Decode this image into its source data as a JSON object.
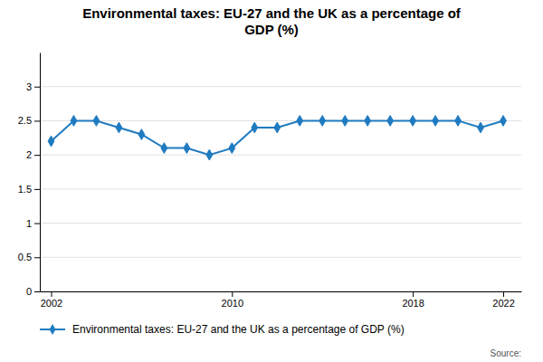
{
  "chart_data": {
    "type": "line",
    "title": "Environmental taxes: EU-27 and the UK as a percentage of\nGDP (%)",
    "annotations": [
      "Source:"
    ],
    "x": [
      2002,
      2003,
      2004,
      2005,
      2006,
      2007,
      2008,
      2009,
      2010,
      2011,
      2012,
      2013,
      2014,
      2015,
      2016,
      2017,
      2018,
      2019,
      2020,
      2021,
      2022
    ],
    "series": [
      {
        "name": "Environmental taxes: EU-27 and the UK as a percentage of GDP (%)",
        "color": "#1f7bc0",
        "marker": "diamond",
        "values": [
          2.2,
          2.5,
          2.5,
          2.4,
          2.3,
          2.1,
          2.1,
          2.0,
          2.1,
          2.4,
          2.4,
          2.5,
          2.5,
          2.5,
          2.5,
          2.5,
          2.5,
          2.5,
          2.5,
          2.4,
          2.5
        ]
      }
    ],
    "xlim": [
      2001.5,
      2022.8
    ],
    "xticks": [
      2002,
      2010,
      2018,
      2022
    ],
    "ylim": [
      0,
      3.5
    ],
    "yticks": [
      0,
      0.5,
      1,
      1.5,
      2,
      2.5,
      3
    ],
    "grid": true,
    "legend": "bottom"
  }
}
